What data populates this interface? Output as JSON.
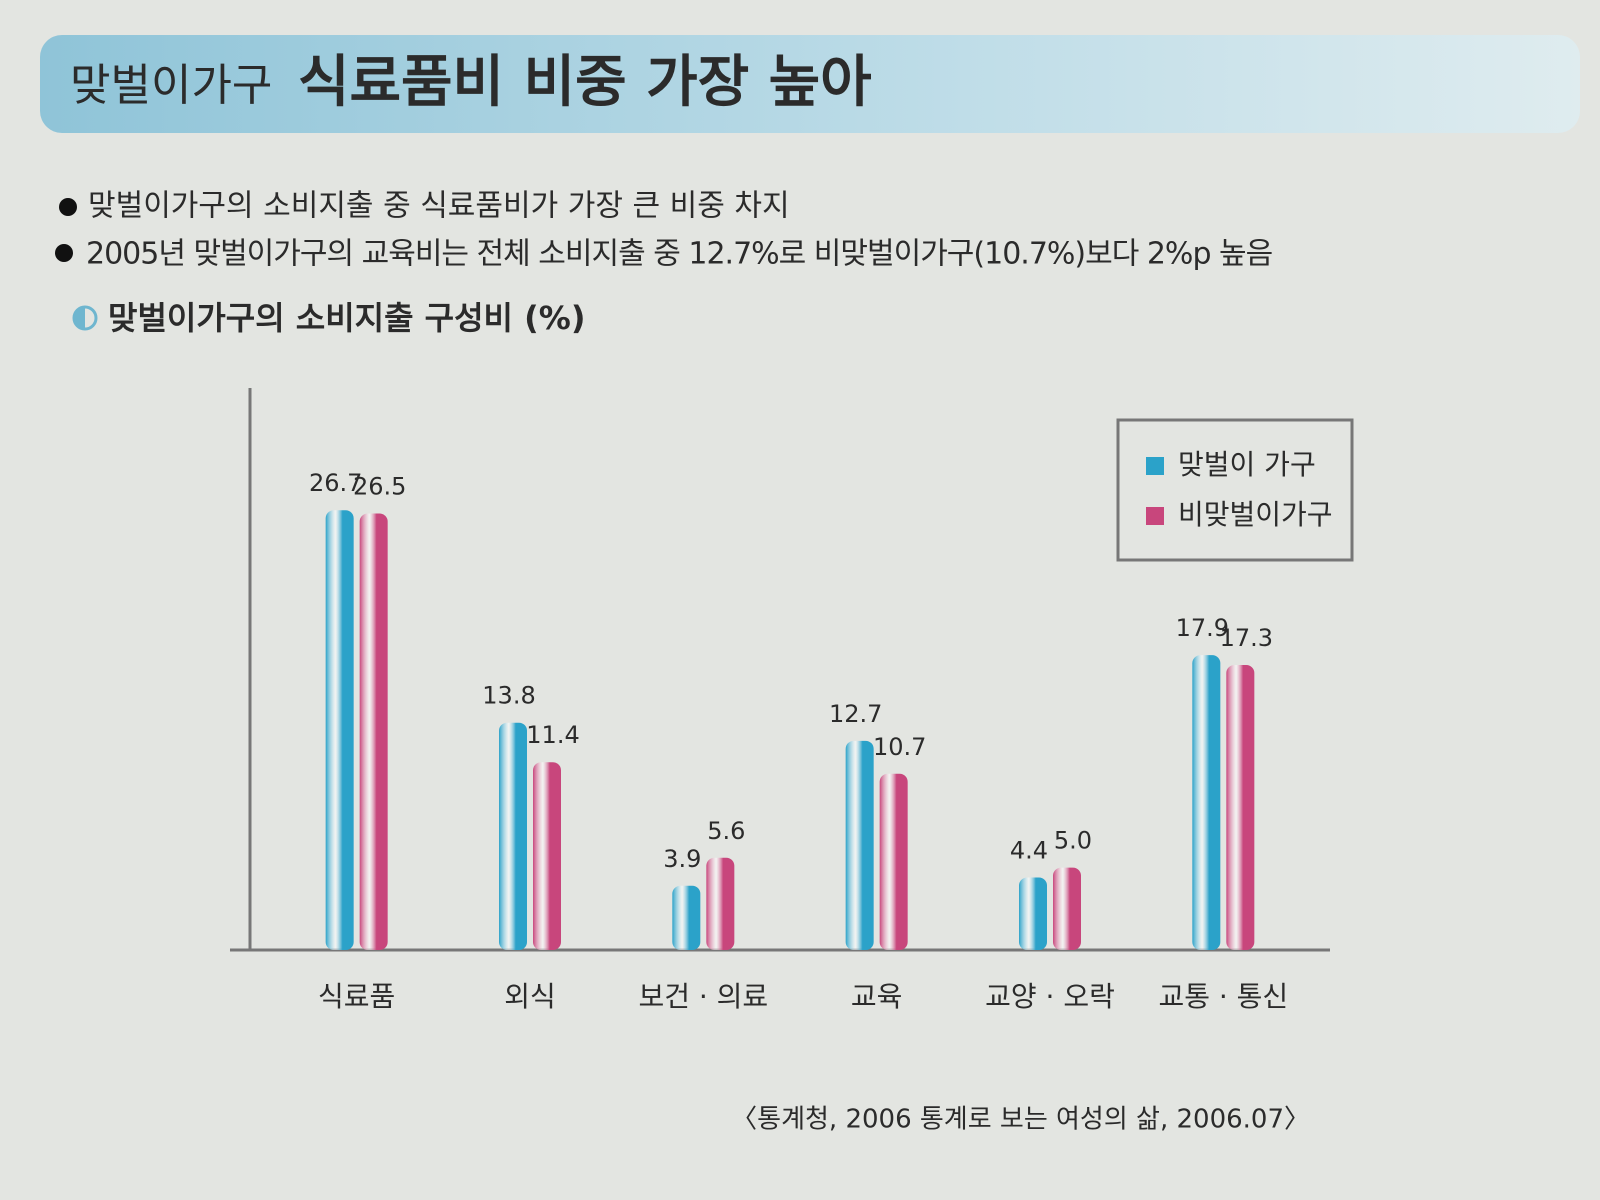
{
  "header": {
    "kicker": "맞벌이가구",
    "title": "식료품비 비중 가장 높아"
  },
  "bullets": [
    "맞벌이가구의 소비지출 중 식료품비가 가장 큰 비중 차지",
    "2005년 맞벌이가구의 교육비는 전체 소비지출 중 12.7%로 비맞벌이가구(10.7%)보다 2%p 높음"
  ],
  "chart_data": {
    "type": "bar",
    "title": "맞벌이가구의 소비지출 구성비 (%)",
    "categories": [
      "식료품",
      "외식",
      "보건 · 의료",
      "교육",
      "교양 · 오락",
      "교통 · 통신"
    ],
    "series": [
      {
        "name": "맞벌이 가구",
        "color": "#2ba2c9",
        "values": [
          26.7,
          13.8,
          3.9,
          12.7,
          4.4,
          17.9
        ],
        "value_labels": [
          "26.7",
          "13.8",
          "3.9",
          "12.7",
          "4.4",
          "17.9"
        ]
      },
      {
        "name": "비맞벌이가구",
        "color": "#c8467c",
        "values": [
          26.5,
          11.4,
          5.6,
          10.7,
          5.0,
          17.3
        ],
        "value_labels": [
          "26.5",
          "11.4",
          "5.6",
          "10.7",
          "5.0",
          "17.3"
        ]
      }
    ],
    "ylim": [
      0,
      34
    ],
    "legend": "top-right",
    "source": "〈통계청, 2006 통계로 보는 여성의 삶, 2006.07〉"
  }
}
